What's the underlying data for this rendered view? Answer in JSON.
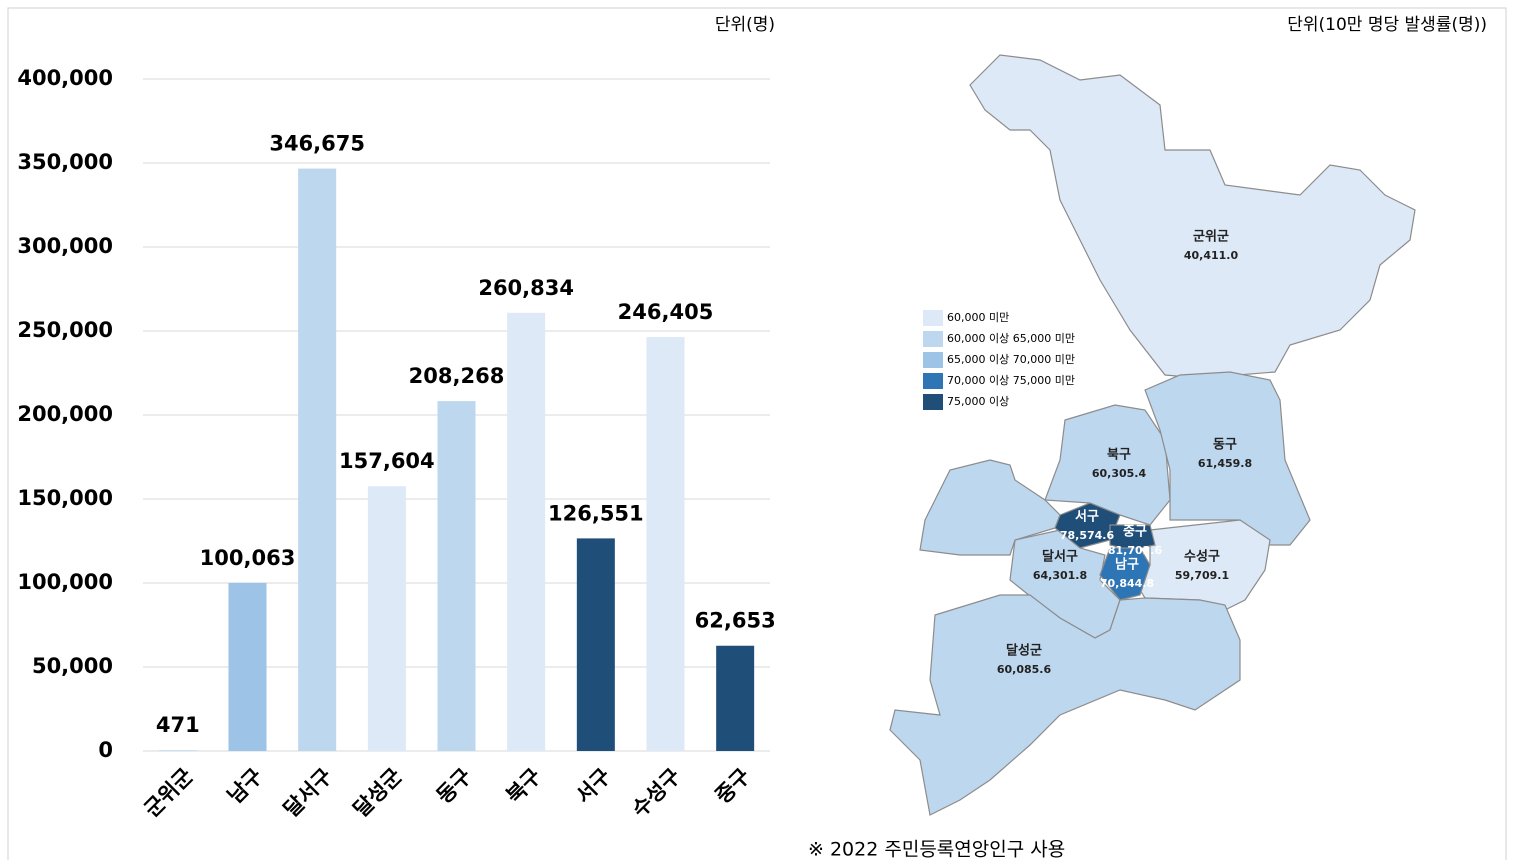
{
  "chart_data": {
    "type": "bar",
    "unit": "단위(명)",
    "categories": [
      "군위군",
      "남구",
      "달서구",
      "달성군",
      "동구",
      "북구",
      "서구",
      "수성구",
      "중구"
    ],
    "values": [
      471,
      100063,
      346675,
      157604,
      208268,
      260834,
      126551,
      246405,
      62653
    ],
    "value_labels": [
      "471",
      "100,063",
      "346,675",
      "157,604",
      "208,268",
      "260,834",
      "126,551",
      "246,405",
      "62,653"
    ],
    "colors": [
      "#bdd7ee",
      "#9dc3e6",
      "#bdd7ee",
      "#dde9f6",
      "#bdd7ee",
      "#dde9f6",
      "#1f4e79",
      "#dde9f6",
      "#1f4e79"
    ],
    "ylim": [
      0,
      400000
    ],
    "yticks": [
      0,
      {
        "value": 50000,
        "label": "50,000"
      },
      {
        "value": 100000,
        "label": "100,000"
      },
      {
        "value": 150000,
        "label": "150,000"
      },
      {
        "value": 200000,
        "label": "200,000"
      },
      {
        "value": 250000,
        "label": "250,000"
      },
      {
        "value": 300000,
        "label": "300,000"
      },
      {
        "value": 350000,
        "label": "350,000"
      },
      {
        "value": 400000,
        "label": "400,000"
      }
    ],
    "grid": true
  },
  "map": {
    "unit": "단위(10만 명당 발생률(명))",
    "legend": [
      {
        "label": "60,000 미만",
        "color": "#dde9f6"
      },
      {
        "label": "60,000 이상 65,000 미만",
        "color": "#bdd7ee"
      },
      {
        "label": "65,000 이상 70,000 미만",
        "color": "#9dc3e6"
      },
      {
        "label": "70,000 이상 75,000 미만",
        "color": "#2e75b6"
      },
      {
        "label": "75,000 이상",
        "color": "#1f4e79"
      }
    ],
    "regions": [
      {
        "name": "군위군",
        "value": "40,411.0",
        "color": "#dde9f6"
      },
      {
        "name": "북구",
        "value": "60,305.4",
        "color": "#bdd7ee"
      },
      {
        "name": "동구",
        "value": "61,459.8",
        "color": "#bdd7ee"
      },
      {
        "name": "달서구",
        "value": "64,301.8",
        "color": "#bdd7ee"
      },
      {
        "name": "수성구",
        "value": "59,709.1",
        "color": "#dde9f6"
      },
      {
        "name": "달성군",
        "value": "60,085.6",
        "color": "#bdd7ee"
      },
      {
        "name": "서구",
        "value": "78,574.6",
        "color": "#1f4e79"
      },
      {
        "name": "중구",
        "value": "81,702.6",
        "color": "#1f4e79"
      },
      {
        "name": "남구",
        "value": "70,844.8",
        "color": "#2e75b6"
      }
    ],
    "note": "※ 2022 주민등록연앙인구 사용"
  }
}
